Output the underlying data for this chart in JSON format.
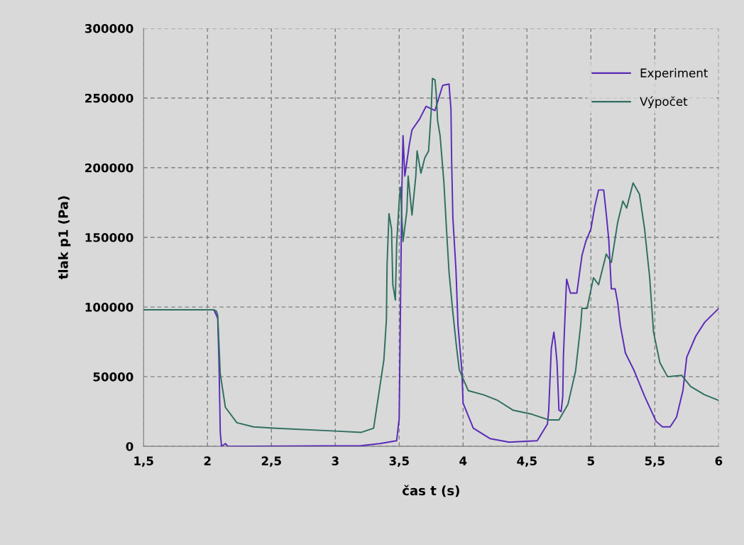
{
  "chart_data": {
    "type": "line",
    "xlabel": "čas t (s)",
    "ylabel": "tlak p1 (Pa)",
    "xlim": [
      1.5,
      6
    ],
    "ylim": [
      0,
      300000
    ],
    "xticks": [
      {
        "value": 1.5,
        "label": "1,5"
      },
      2,
      {
        "value": 2.5,
        "label": "2,5"
      },
      3,
      {
        "value": 3.5,
        "label": "3,5"
      },
      4,
      {
        "value": 4.5,
        "label": "4,5"
      },
      5,
      {
        "value": 5.5,
        "label": "5,5"
      },
      6
    ],
    "yticks": [
      0,
      50000,
      100000,
      150000,
      200000,
      250000,
      300000
    ],
    "grid": true,
    "legend": "top right",
    "line_style": "solid",
    "marker": "none",
    "series": [
      {
        "name": "Experiment",
        "color": "#5a2ab8",
        "x": [
          1.5,
          2.05,
          2.08,
          2.09,
          2.1,
          2.11,
          2.14,
          2.16,
          3.2,
          3.35,
          3.48,
          3.5,
          3.51,
          3.52,
          3.53,
          3.544,
          3.58,
          3.6,
          3.66,
          3.71,
          3.78,
          3.84,
          3.89,
          3.905,
          3.91,
          3.92,
          3.944,
          3.96,
          3.99,
          4.0,
          4.08,
          4.21,
          4.36,
          4.58,
          4.66,
          4.67,
          4.69,
          4.71,
          4.72,
          4.735,
          4.75,
          4.767,
          4.78,
          4.785,
          4.8,
          4.81,
          4.84,
          4.89,
          4.93,
          4.96,
          5.0,
          5.03,
          5.06,
          5.1,
          5.12,
          5.14,
          5.16,
          5.19,
          5.21,
          5.23,
          5.27,
          5.34,
          5.42,
          5.51,
          5.56,
          5.62,
          5.67,
          5.72,
          5.75,
          5.82,
          5.89,
          6.0
        ],
        "values": [
          98000,
          98000,
          92000,
          60000,
          10000,
          0,
          2000,
          0,
          500,
          2000,
          4000,
          20000,
          100000,
          180000,
          223000,
          194000,
          217000,
          227000,
          235000,
          244000,
          241000,
          259000,
          260000,
          242000,
          207000,
          164000,
          127000,
          87000,
          55000,
          31000,
          13000,
          5600,
          3000,
          4000,
          16000,
          26000,
          70000,
          82000,
          75000,
          60000,
          26000,
          25000,
          36000,
          65000,
          99000,
          120000,
          110000,
          110000,
          137000,
          147000,
          156000,
          172000,
          184000,
          184000,
          167000,
          148000,
          113000,
          113000,
          103000,
          87000,
          67000,
          54000,
          36000,
          18000,
          14000,
          14000,
          21000,
          40000,
          64000,
          79000,
          89000,
          99000
        ]
      },
      {
        "name": "Výpočet",
        "color": "#2f6f60",
        "x": [
          1.5,
          2.05,
          2.07,
          2.08,
          2.1,
          2.14,
          2.23,
          2.36,
          2.54,
          3.0,
          3.2,
          3.3,
          3.38,
          3.4,
          3.405,
          3.42,
          3.44,
          3.45,
          3.47,
          3.48,
          3.5,
          3.51,
          3.53,
          3.56,
          3.57,
          3.6,
          3.63,
          3.64,
          3.67,
          3.7,
          3.73,
          3.75,
          3.76,
          3.78,
          3.79,
          3.8,
          3.82,
          3.85,
          3.87,
          3.89,
          3.92,
          3.95,
          3.97,
          4.04,
          4.16,
          4.27,
          4.39,
          4.54,
          4.67,
          4.75,
          4.82,
          4.88,
          4.92,
          4.93,
          4.97,
          5.02,
          5.06,
          5.12,
          5.16,
          5.21,
          5.25,
          5.28,
          5.33,
          5.38,
          5.42,
          5.46,
          5.49,
          5.54,
          5.6,
          5.71,
          5.78,
          5.89,
          6.0
        ],
        "values": [
          98000,
          98000,
          97000,
          94000,
          52000,
          28000,
          17000,
          14000,
          13000,
          11000,
          10000,
          13000,
          62000,
          91000,
          130000,
          167000,
          156000,
          116000,
          105000,
          145000,
          176000,
          186000,
          147000,
          169000,
          194000,
          166000,
          194000,
          212000,
          196000,
          207000,
          212000,
          240000,
          264000,
          263000,
          253000,
          234000,
          223000,
          189000,
          156000,
          125000,
          96000,
          70000,
          55000,
          40000,
          37000,
          33000,
          26000,
          23000,
          19000,
          19000,
          30000,
          54000,
          87000,
          99000,
          99000,
          121000,
          116000,
          138000,
          132000,
          161000,
          176000,
          171000,
          189000,
          181000,
          156000,
          121000,
          82000,
          60000,
          50000,
          51000,
          43000,
          37000,
          33000
        ]
      }
    ]
  }
}
